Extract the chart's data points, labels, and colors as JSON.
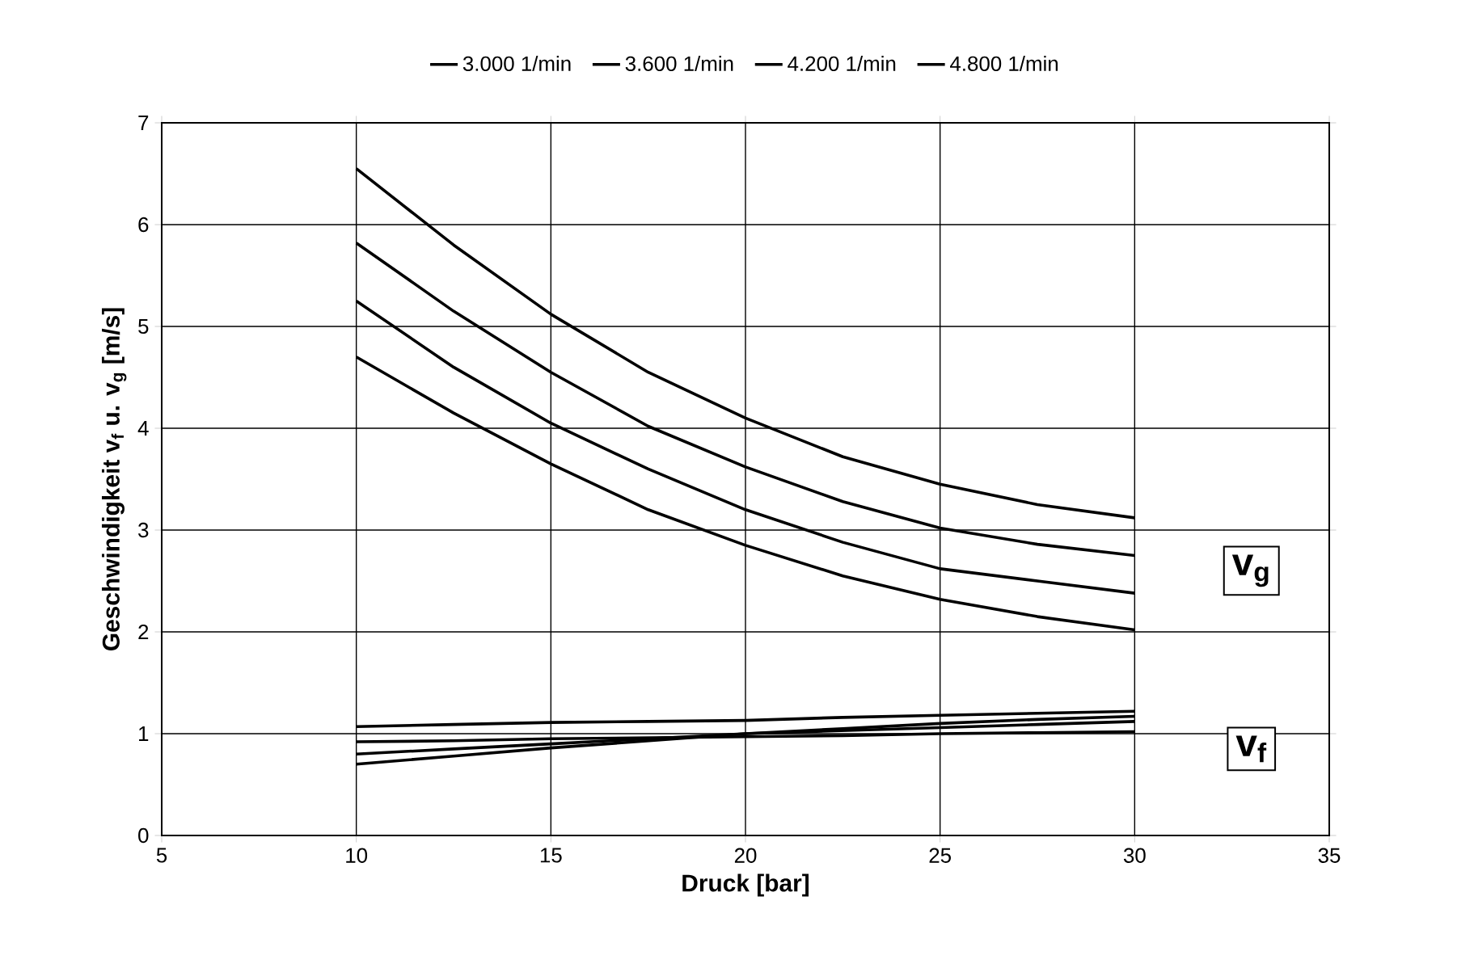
{
  "chart_data": {
    "type": "line",
    "xlabel": "Druck [bar]",
    "ylabel": "Geschwindigkeit v$_{f}$ u. v$_{g}$ [m/s]",
    "x": [
      10,
      12.5,
      15,
      17.5,
      20,
      22.5,
      25,
      27.5,
      30
    ],
    "series": [
      {
        "name": "3.000 1/min",
        "color": "#000000",
        "values": [
          4.7,
          4.15,
          3.65,
          3.2,
          2.85,
          2.55,
          2.32,
          2.15,
          2.02
        ]
      },
      {
        "name": "3.600 1/min",
        "color": "#000000",
        "values": [
          5.25,
          4.6,
          4.05,
          3.6,
          3.2,
          2.88,
          2.62,
          2.5,
          2.38
        ]
      },
      {
        "name": "4.200 1/min",
        "color": "#000000",
        "values": [
          5.82,
          5.15,
          4.55,
          4.02,
          3.62,
          3.28,
          3.02,
          2.86,
          2.75
        ]
      },
      {
        "name": "4.800 1/min",
        "color": "#000000",
        "values": [
          6.55,
          5.8,
          5.12,
          4.55,
          4.1,
          3.72,
          3.45,
          3.25,
          3.12
        ]
      },
      {
        "color": "#000000",
        "values": [
          0.92,
          0.93,
          0.95,
          0.96,
          0.97,
          0.98,
          1.0,
          1.01,
          1.02
        ]
      },
      {
        "color": "#000000",
        "values": [
          0.8,
          0.85,
          0.9,
          0.95,
          1.0,
          1.03,
          1.06,
          1.09,
          1.12
        ]
      },
      {
        "color": "#000000",
        "values": [
          0.7,
          0.78,
          0.86,
          0.93,
          1.0,
          1.05,
          1.1,
          1.14,
          1.17
        ]
      },
      {
        "color": "#000000",
        "values": [
          1.07,
          1.09,
          1.11,
          1.12,
          1.13,
          1.16,
          1.18,
          1.2,
          1.22
        ]
      }
    ],
    "xlim": [
      5,
      35
    ],
    "xticks": [
      5,
      10,
      15,
      20,
      25,
      30,
      35
    ],
    "ylim": [
      0,
      7
    ],
    "yticks": [
      0,
      1,
      2,
      3,
      4,
      5,
      6,
      7
    ],
    "grid": true,
    "legend": "top",
    "marker": "none",
    "line_style": "solid",
    "annotations": [
      {
        "text": "v$_{g}$",
        "x": 33,
        "y": 2.6
      },
      {
        "text": "v$_{f}$",
        "x": 33,
        "y": 0.85
      }
    ]
  }
}
